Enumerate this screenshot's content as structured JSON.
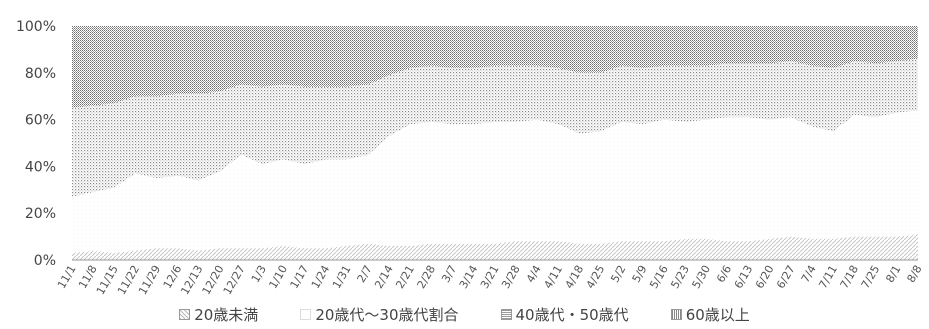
{
  "chart_data": {
    "type": "area",
    "stacked": true,
    "percent_stacked": true,
    "yticks": [
      "0%",
      "20%",
      "40%",
      "60%",
      "80%",
      "100%"
    ],
    "ylim": [
      0,
      100
    ],
    "grid": false,
    "legend_position": "bottom",
    "categories": [
      "11/1",
      "11/8",
      "11/15",
      "11/22",
      "11/29",
      "12/6",
      "12/13",
      "12/20",
      "12/27",
      "1/3",
      "1/10",
      "1/17",
      "1/24",
      "1/31",
      "2/7",
      "2/14",
      "2/21",
      "2/28",
      "3/7",
      "3/14",
      "3/21",
      "3/28",
      "4/4",
      "4/11",
      "4/18",
      "4/25",
      "5/2",
      "5/9",
      "5/16",
      "5/23",
      "5/30",
      "6/6",
      "6/13",
      "6/20",
      "6/27",
      "7/4",
      "7/11",
      "7/18",
      "7/25",
      "8/1",
      "8/8"
    ],
    "series": [
      {
        "name": "20歳未満",
        "color": "#d8d8d8",
        "values": [
          3,
          4,
          3,
          4,
          5,
          5,
          4,
          5,
          5,
          5,
          6,
          5,
          5,
          6,
          7,
          6,
          6,
          7,
          7,
          7,
          7,
          8,
          8,
          8,
          7,
          7,
          8,
          8,
          8,
          9,
          9,
          8,
          8,
          9,
          10,
          9,
          9,
          10,
          10,
          10,
          11
        ]
      },
      {
        "name": "20歳代～30歳代割合",
        "color": "#f4f4f4",
        "values": [
          24,
          25,
          28,
          33,
          30,
          31,
          30,
          33,
          40,
          36,
          37,
          36,
          38,
          37,
          38,
          47,
          52,
          52,
          51,
          51,
          52,
          51,
          52,
          50,
          47,
          48,
          51,
          50,
          52,
          50,
          51,
          53,
          53,
          51,
          51,
          48,
          46,
          52,
          51,
          53,
          53
        ]
      },
      {
        "name": "40歳代・50歳代",
        "color": "#bfbfbf",
        "values": [
          38,
          37,
          36,
          33,
          35,
          35,
          37,
          34,
          30,
          33,
          32,
          33,
          31,
          31,
          30,
          26,
          24,
          24,
          24,
          24,
          24,
          24,
          23,
          24,
          26,
          25,
          24,
          24,
          23,
          24,
          23,
          23,
          23,
          24,
          24,
          26,
          27,
          23,
          23,
          22,
          22
        ]
      },
      {
        "name": "60歳以上",
        "color": "#9a9a9a",
        "values": [
          35,
          34,
          33,
          30,
          30,
          29,
          29,
          28,
          25,
          26,
          25,
          26,
          26,
          26,
          25,
          21,
          18,
          17,
          18,
          18,
          17,
          17,
          17,
          18,
          20,
          20,
          17,
          18,
          17,
          17,
          17,
          16,
          16,
          16,
          15,
          17,
          18,
          15,
          16,
          15,
          14
        ]
      }
    ]
  }
}
